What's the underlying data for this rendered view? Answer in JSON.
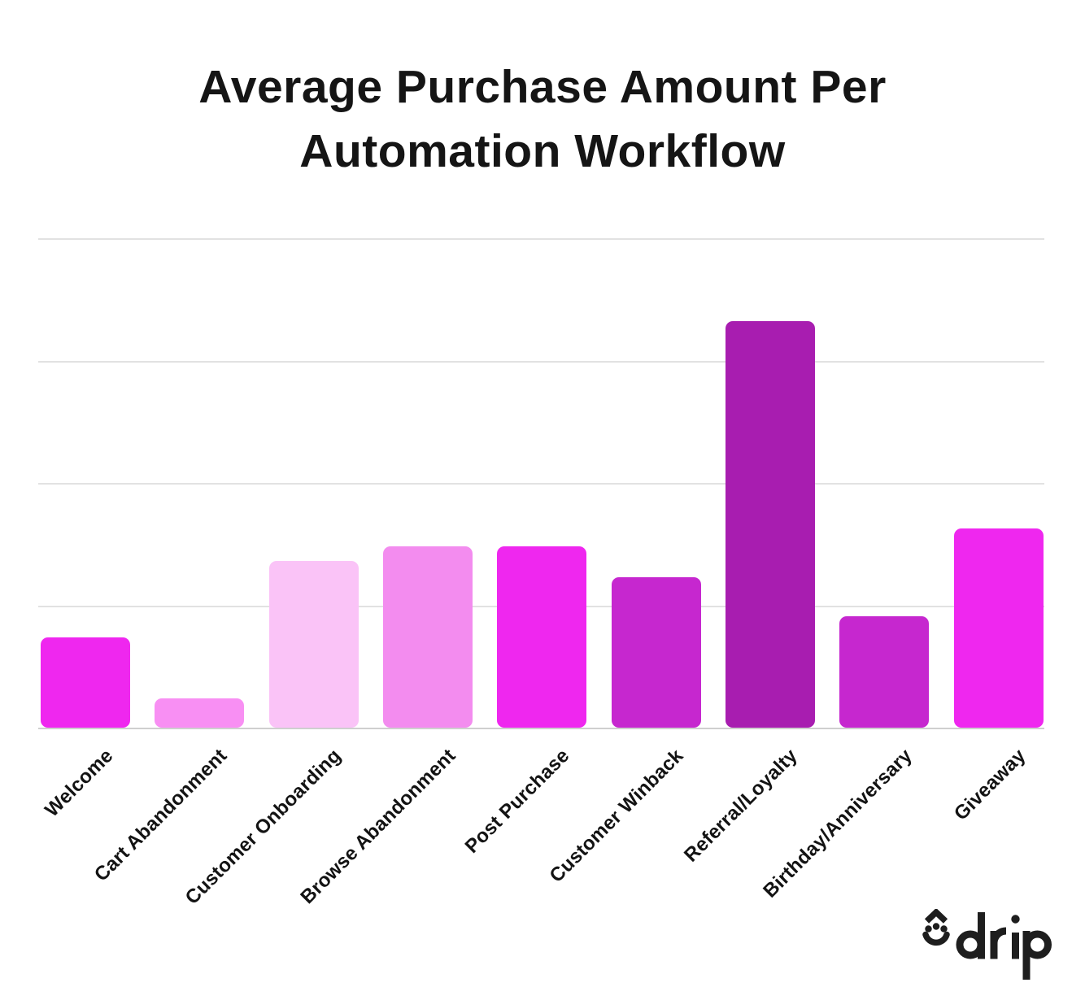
{
  "title": {
    "line1": "Average Purchase Amount Per",
    "line2": "Automation Workflow",
    "color": "#151515"
  },
  "chart_data": {
    "type": "bar",
    "title": "Average Purchase Amount Per Automation Workflow",
    "categories": [
      "Welcome",
      "Cart Abandonment",
      "Customer Onboarding",
      "Browse Abandonment",
      "Post Purchase",
      "Customer Winback",
      "Referral/Loyalty",
      "Birthday/Anniversary",
      "Giveaway"
    ],
    "values": [
      0.74,
      0.24,
      1.36,
      1.48,
      1.48,
      1.23,
      3.32,
      0.91,
      1.63
    ],
    "bar_colors": [
      "#EF27EF",
      "#F88FF3",
      "#FAC3F7",
      "#F38CEF",
      "#EF27EF",
      "#C627CF",
      "#A81DB0",
      "#C627CF",
      "#EF27EF"
    ],
    "xlabel": "",
    "ylabel": "",
    "ylim": [
      0,
      4
    ],
    "grid": true,
    "gridline_interval_units": 1,
    "y_tick_labels_shown": false,
    "legend": "none",
    "note": "y-axis is unlabeled; values are estimated in gridline units (1 unit = one horizontal gridline interval)"
  },
  "colors": {
    "grid": "#E2E2E2",
    "axis": "#CFCFCF",
    "label_text": "#131313"
  },
  "logo": {
    "text": "drip",
    "color": "#1E1E1E",
    "icon": "drip-droplet-face-icon"
  }
}
